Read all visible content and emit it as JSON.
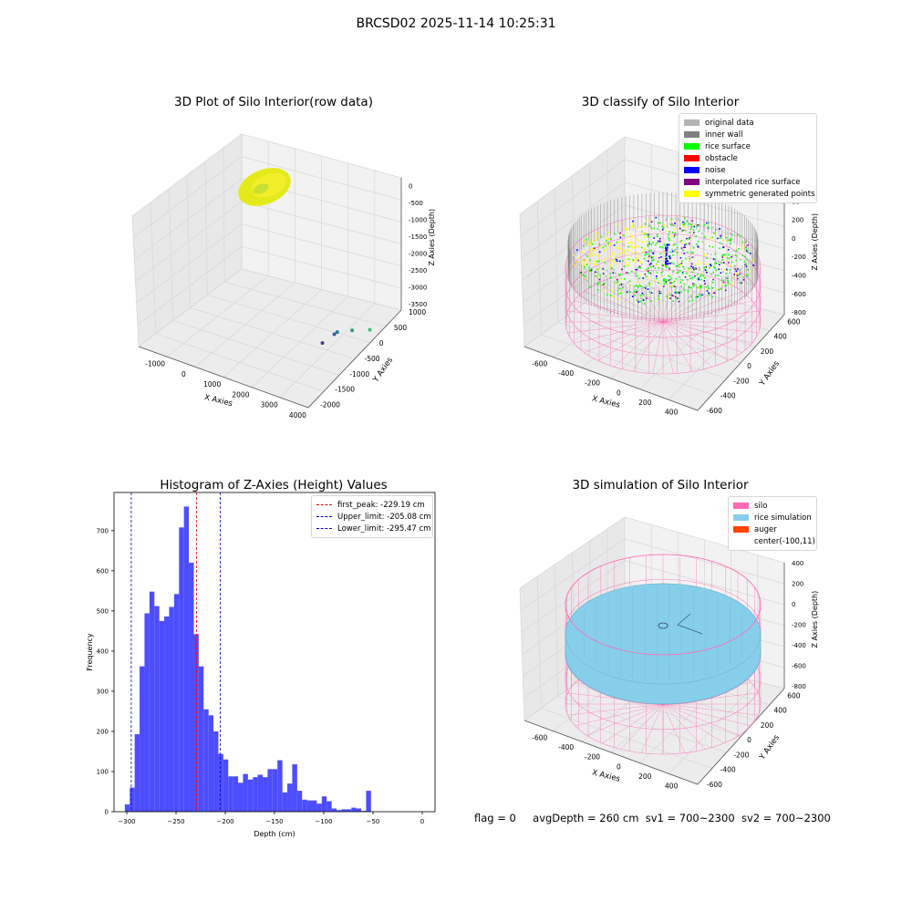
{
  "suptitle": "BRCSD02 2025-11-14 10:25:31",
  "colors": {
    "hist_bar": "#4d4dff",
    "first_peak": "#ff0000",
    "upper_limit": "#0000cc",
    "lower_limit": "#0000cc",
    "silo": "#ff69b4",
    "rice_simulation": "#87ceeb",
    "auger": "#ff4500",
    "original_data": "#b3b3b3",
    "inner_wall": "#808080",
    "rice_surface": "#00ff00",
    "obstacle": "#ff0000",
    "noise": "#0000ff",
    "interpolated_rice_surface": "#800080",
    "symmetric_generated_points": "#ffff00"
  },
  "footer": {
    "flag": "flag = 0",
    "avg_depth": "avgDepth = 260 cm",
    "sv1": "sv1 = 700~2300",
    "sv2": "sv2 = 700~2300"
  },
  "chart_data": [
    {
      "type": "scatter",
      "title": "3D Plot of Silo Interior(row data)",
      "xlabel": "X Axies",
      "ylabel": "Y Axies",
      "zlabel": "Z Axies (Depth)",
      "x_ticks": [
        "-1000",
        "0",
        "1000",
        "2000",
        "3000",
        "4000"
      ],
      "y_ticks": [
        "1000",
        "500",
        "0",
        "-500",
        "-1000",
        "-1500",
        "-2000"
      ],
      "z_ticks": [
        "0",
        "-500",
        "-1000",
        "-1500",
        "-2000",
        "-2500",
        "-3000",
        "-3500"
      ],
      "outlier_points": [
        {
          "x": 3600,
          "y": 400,
          "z": -3400,
          "color": "#3cc07a"
        },
        {
          "x": 3300,
          "y": 100,
          "z": -3300,
          "color": "#2a9a8a"
        },
        {
          "x": 3100,
          "y": -200,
          "z": -3200,
          "color": "#2a7a9a"
        },
        {
          "x": 3050,
          "y": -250,
          "z": -3250,
          "color": "#3a5aa0"
        },
        {
          "x": 2900,
          "y": -500,
          "z": -3400,
          "color": "#5a3a8a"
        }
      ]
    },
    {
      "type": "scatter",
      "title": "3D classify of Silo Interior",
      "xlabel": "X Axies",
      "ylabel": "Y Axies",
      "zlabel": "Z Axies (Depth)",
      "x_ticks": [
        "-600",
        "-400",
        "-200",
        "0",
        "200",
        "400"
      ],
      "y_ticks": [
        "600",
        "400",
        "200",
        "0",
        "-200",
        "-400",
        "-600"
      ],
      "z_ticks": [
        "200",
        "0",
        "-200",
        "-400",
        "-600",
        "-800"
      ],
      "z_top_partial": "00",
      "legend": [
        {
          "label": "original data",
          "color": "#b3b3b3"
        },
        {
          "label": "inner wall",
          "color": "#808080"
        },
        {
          "label": "rice surface",
          "color": "#00ff00"
        },
        {
          "label": "obstacle",
          "color": "#ff0000"
        },
        {
          "label": "noise",
          "color": "#0000ff"
        },
        {
          "label": "interpolated rice surface",
          "color": "#800080"
        },
        {
          "label": "symmetric generated points",
          "color": "#ffff00"
        }
      ]
    },
    {
      "type": "bar",
      "title": "Histogram of Z-Axies (Height) Values",
      "xlabel": "Depth (cm)",
      "ylabel": "Frequency",
      "xlim": [
        -313,
        13
      ],
      "ylim": [
        0,
        795
      ],
      "bin_width": 5,
      "x_ticks": [
        -300,
        -250,
        -200,
        -150,
        -100,
        -50,
        0
      ],
      "y_ticks": [
        0,
        100,
        200,
        300,
        400,
        500,
        600,
        700
      ],
      "bins": [
        {
          "x": -302,
          "y": 18
        },
        {
          "x": -297,
          "y": 60
        },
        {
          "x": -292,
          "y": 193
        },
        {
          "x": -287,
          "y": 362
        },
        {
          "x": -282,
          "y": 494
        },
        {
          "x": -277,
          "y": 548
        },
        {
          "x": -272,
          "y": 512
        },
        {
          "x": -267,
          "y": 475
        },
        {
          "x": -262,
          "y": 486
        },
        {
          "x": -257,
          "y": 510
        },
        {
          "x": -252,
          "y": 542
        },
        {
          "x": -247,
          "y": 708
        },
        {
          "x": -242,
          "y": 760
        },
        {
          "x": -237,
          "y": 620
        },
        {
          "x": -232,
          "y": 442
        },
        {
          "x": -227,
          "y": 362
        },
        {
          "x": -222,
          "y": 255
        },
        {
          "x": -217,
          "y": 240
        },
        {
          "x": -212,
          "y": 200
        },
        {
          "x": -207,
          "y": 144
        },
        {
          "x": -202,
          "y": 130
        },
        {
          "x": -197,
          "y": 88
        },
        {
          "x": -192,
          "y": 88
        },
        {
          "x": -187,
          "y": 72
        },
        {
          "x": -182,
          "y": 94
        },
        {
          "x": -177,
          "y": 80
        },
        {
          "x": -172,
          "y": 86
        },
        {
          "x": -167,
          "y": 92
        },
        {
          "x": -162,
          "y": 86
        },
        {
          "x": -157,
          "y": 106
        },
        {
          "x": -152,
          "y": 106
        },
        {
          "x": -147,
          "y": 128
        },
        {
          "x": -142,
          "y": 48
        },
        {
          "x": -137,
          "y": 70
        },
        {
          "x": -132,
          "y": 118
        },
        {
          "x": -127,
          "y": 52
        },
        {
          "x": -122,
          "y": 30
        },
        {
          "x": -117,
          "y": 28
        },
        {
          "x": -112,
          "y": 28
        },
        {
          "x": -107,
          "y": 20
        },
        {
          "x": -102,
          "y": 38
        },
        {
          "x": -97,
          "y": 26
        },
        {
          "x": -92,
          "y": 8
        },
        {
          "x": -87,
          "y": 4
        },
        {
          "x": -82,
          "y": 6
        },
        {
          "x": -77,
          "y": 6
        },
        {
          "x": -72,
          "y": 10
        },
        {
          "x": -67,
          "y": 8
        },
        {
          "x": -62,
          "y": 2
        },
        {
          "x": -57,
          "y": 52
        }
      ],
      "vlines": [
        {
          "label": "first_peak: -229.19 cm",
          "x": -229.19,
          "color": "#ff0000"
        },
        {
          "label": "Upper_limit: -205.08 cm",
          "x": -205.08,
          "color": "#0000cc"
        },
        {
          "label": "Lower_limit: -295.47 cm",
          "x": -295.47,
          "color": "#0000cc"
        }
      ]
    },
    {
      "type": "scatter",
      "title": "3D simulation of Silo Interior",
      "xlabel": "X Axies",
      "ylabel": "Y Axies",
      "zlabel": "Z Axies (Depth)",
      "x_ticks": [
        "-600",
        "-400",
        "-200",
        "0",
        "200",
        "400"
      ],
      "y_ticks": [
        "600",
        "400",
        "200",
        "0",
        "-200",
        "-400",
        "-600"
      ],
      "z_ticks": [
        "400",
        "200",
        "0",
        "-200",
        "-400",
        "-600",
        "-800"
      ],
      "legend": [
        {
          "label": "silo",
          "color": "#ff69b4"
        },
        {
          "label": "rice simulation",
          "color": "#87ceeb"
        },
        {
          "label": "auger",
          "color": "#ff4500"
        },
        {
          "label": "center(-100,11)",
          "color": ""
        }
      ]
    }
  ]
}
